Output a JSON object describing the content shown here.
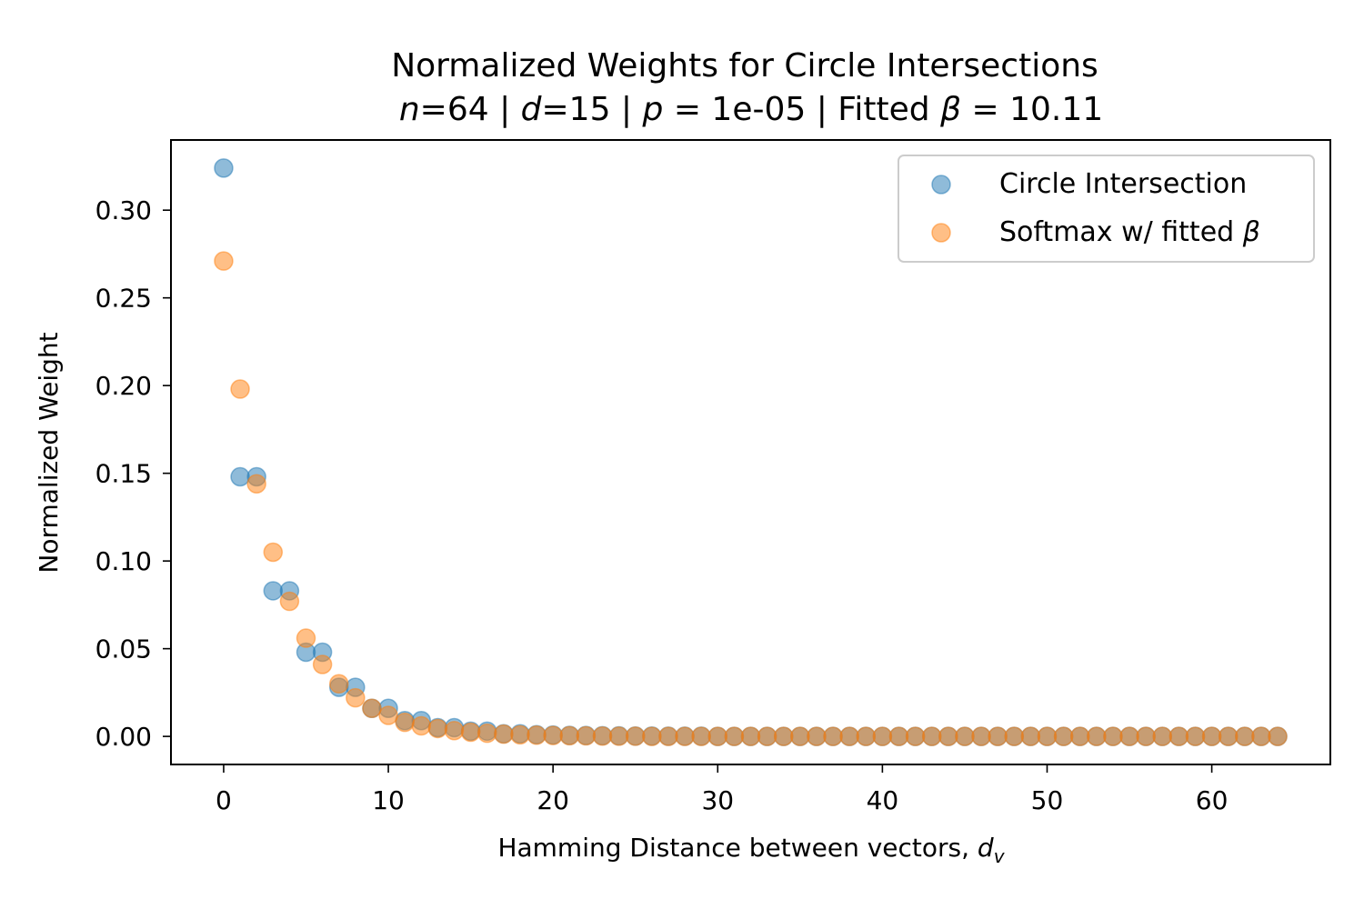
{
  "chart_data": {
    "type": "scatter",
    "title": "Normalized Weights for Circle Intersections",
    "subtitle": "n=64 | d=15 | p = 1e-05 | Fitted β = 10.11",
    "xlabel": "Hamming Distance between vectors, d_v",
    "ylabel": "Normalized Weight",
    "xlim": [
      -3.2,
      67.2
    ],
    "ylim": [
      -0.016,
      0.34
    ],
    "xticks": [
      0,
      10,
      20,
      30,
      40,
      50,
      60
    ],
    "yticks": [
      0.0,
      0.05,
      0.1,
      0.15,
      0.2,
      0.25,
      0.3
    ],
    "ytick_labels": [
      "0.00",
      "0.05",
      "0.10",
      "0.15",
      "0.20",
      "0.25",
      "0.30"
    ],
    "grid": false,
    "legend_position": "top-right",
    "series": [
      {
        "name": "Circle Intersection",
        "color": "#1f77b4",
        "x": [
          0,
          1,
          2,
          3,
          4,
          5,
          6,
          7,
          8,
          9,
          10,
          11,
          12,
          13,
          14,
          15,
          16,
          17,
          18,
          19,
          20,
          21,
          22,
          23,
          24,
          25,
          26,
          27,
          28,
          29,
          30,
          31,
          32,
          33,
          34,
          35,
          36,
          37,
          38,
          39,
          40,
          41,
          42,
          43,
          44,
          45,
          46,
          47,
          48,
          49,
          50,
          51,
          52,
          53,
          54,
          55,
          56,
          57,
          58,
          59,
          60,
          61,
          62,
          63,
          64
        ],
        "y": [
          0.324,
          0.148,
          0.148,
          0.083,
          0.083,
          0.048,
          0.048,
          0.028,
          0.028,
          0.016,
          0.016,
          0.009,
          0.009,
          0.005,
          0.005,
          0.003,
          0.003,
          0.0015,
          0.0015,
          0.001,
          0.0008,
          0.0006,
          0.0005,
          0.0004,
          0.0003,
          0.0002,
          0.0002,
          0.0001,
          0.0001,
          0.0001,
          0,
          0,
          0,
          0,
          0,
          0,
          0,
          0,
          0,
          0,
          0,
          0,
          0,
          0,
          0,
          0,
          0,
          0,
          0,
          0,
          0,
          0,
          0,
          0,
          0,
          0,
          0,
          0,
          0,
          0,
          0,
          0,
          0,
          0,
          0
        ]
      },
      {
        "name": "Softmax w/ fitted β",
        "color": "#ff7f0e",
        "x": [
          0,
          1,
          2,
          3,
          4,
          5,
          6,
          7,
          8,
          9,
          10,
          11,
          12,
          13,
          14,
          15,
          16,
          17,
          18,
          19,
          20,
          21,
          22,
          23,
          24,
          25,
          26,
          27,
          28,
          29,
          30,
          31,
          32,
          33,
          34,
          35,
          36,
          37,
          38,
          39,
          40,
          41,
          42,
          43,
          44,
          45,
          46,
          47,
          48,
          49,
          50,
          51,
          52,
          53,
          54,
          55,
          56,
          57,
          58,
          59,
          60,
          61,
          62,
          63,
          64
        ],
        "y": [
          0.271,
          0.198,
          0.144,
          0.105,
          0.077,
          0.056,
          0.041,
          0.03,
          0.022,
          0.016,
          0.012,
          0.008,
          0.006,
          0.0045,
          0.0033,
          0.0024,
          0.0018,
          0.0013,
          0.0009,
          0.0007,
          0.0005,
          0.0004,
          0.0003,
          0.0002,
          0.0001,
          0.0001,
          0,
          0,
          0,
          0,
          0,
          0,
          0,
          0,
          0,
          0,
          0,
          0,
          0,
          0,
          0,
          0,
          0,
          0,
          0,
          0,
          0,
          0,
          0,
          0,
          0,
          0,
          0,
          0,
          0,
          0,
          0,
          0,
          0,
          0,
          0,
          0,
          0,
          0,
          0
        ]
      }
    ]
  }
}
